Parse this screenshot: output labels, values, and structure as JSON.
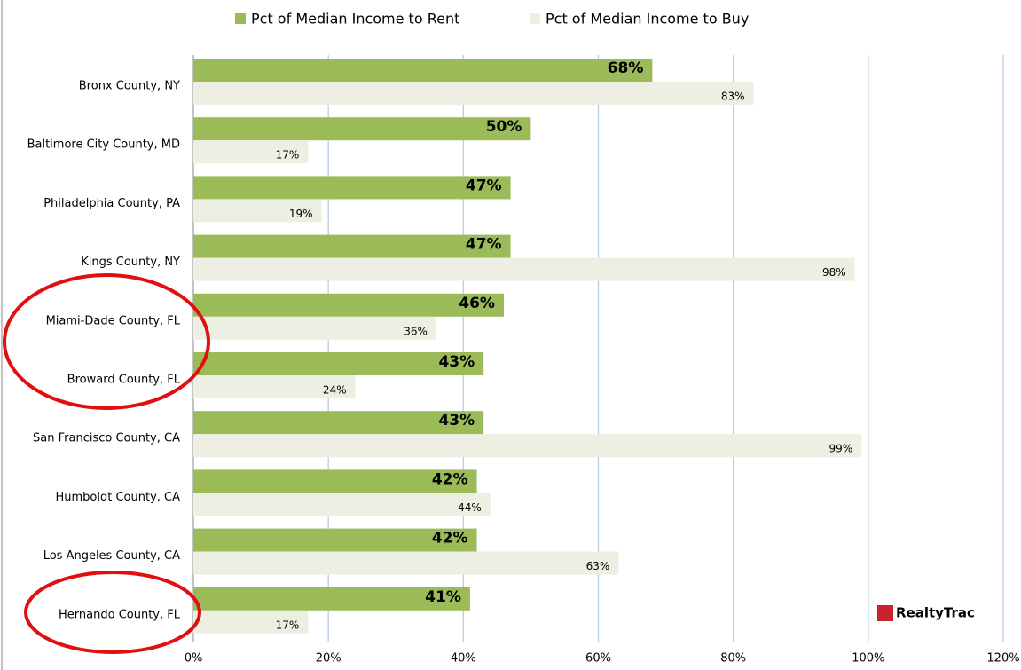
{
  "chart_data": {
    "type": "bar",
    "orientation": "horizontal",
    "categories": [
      "Bronx County, NY",
      "Baltimore City County, MD",
      "Philadelphia County, PA",
      "Kings County, NY",
      "Miami-Dade County, FL",
      "Broward County, FL",
      "San Francisco County, CA",
      "Humboldt County, CA",
      "Los Angeles County, CA",
      "Hernando County, FL"
    ],
    "series": [
      {
        "name": "Pct of Median Income to Rent",
        "color": "#9bbb59",
        "values": [
          68,
          50,
          47,
          47,
          46,
          43,
          43,
          42,
          42,
          41
        ],
        "value_labels": [
          "68%",
          "50%",
          "47%",
          "47%",
          "46%",
          "43%",
          "43%",
          "42%",
          "42%",
          "41%"
        ]
      },
      {
        "name": "Pct of Median Income to Buy",
        "color": "#ecefe1",
        "values": [
          83,
          17,
          19,
          98,
          36,
          24,
          99,
          44,
          63,
          17
        ],
        "value_labels": [
          "83%",
          "17%",
          "19%",
          "98%",
          "36%",
          "24%",
          "99%",
          "44%",
          "63%",
          "17%"
        ]
      }
    ],
    "xlim": [
      0,
      120
    ],
    "xticks": [
      {
        "value": 0,
        "label": "0%"
      },
      {
        "value": 20,
        "label": "20%"
      },
      {
        "value": 40,
        "label": "40%"
      },
      {
        "value": 60,
        "label": "60%"
      },
      {
        "value": 80,
        "label": "80%"
      },
      {
        "value": 100,
        "label": "100%"
      },
      {
        "value": 120,
        "label": "120%"
      }
    ],
    "grid": true,
    "legend": "top",
    "watermark": "RealtyTrac"
  }
}
